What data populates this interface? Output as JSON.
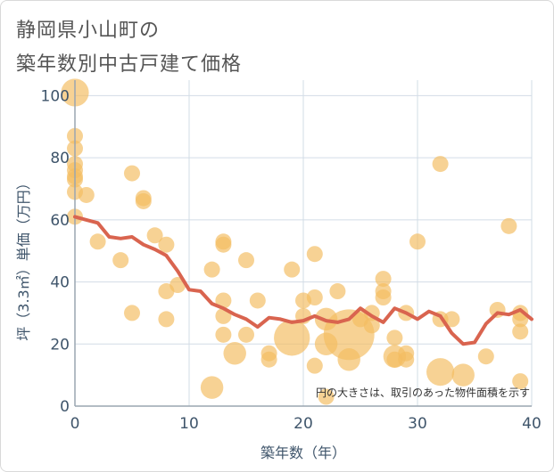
{
  "title": {
    "line1": "静岡県小山町の",
    "line2": "築年数別中古戸建て価格"
  },
  "chart_data": {
    "type": "scatter",
    "title": "静岡県小山町の 築年数別中古戸建て価格",
    "xlabel": "築年数（年）",
    "ylabel": "坪（3.3㎡）単価（万円）",
    "xlim": [
      0,
      40
    ],
    "ylim": [
      0,
      105
    ],
    "xticks": [
      "0",
      "10",
      "20",
      "30",
      "40"
    ],
    "yticks": [
      "0",
      "20",
      "40",
      "60",
      "80",
      "100"
    ],
    "grid": true,
    "annotation": "円の大きさは、取引のあった物件面積を示す",
    "colors": {
      "bubble": "#f3bc62",
      "line": "#d9644f",
      "grid": "#d2dce6",
      "axis": "#9aa5b1"
    },
    "scatter": [
      {
        "x": 0,
        "y": 101,
        "s": 3
      },
      {
        "x": 0,
        "y": 87,
        "s": 1
      },
      {
        "x": 0,
        "y": 83,
        "s": 1
      },
      {
        "x": 0,
        "y": 78,
        "s": 1
      },
      {
        "x": 0,
        "y": 76,
        "s": 1
      },
      {
        "x": 0,
        "y": 74,
        "s": 1
      },
      {
        "x": 0,
        "y": 73,
        "s": 1
      },
      {
        "x": 0,
        "y": 69,
        "s": 1
      },
      {
        "x": 0,
        "y": 61,
        "s": 1
      },
      {
        "x": 1,
        "y": 68,
        "s": 1
      },
      {
        "x": 2,
        "y": 53,
        "s": 1
      },
      {
        "x": 4,
        "y": 47,
        "s": 1
      },
      {
        "x": 5,
        "y": 75,
        "s": 1
      },
      {
        "x": 5,
        "y": 30,
        "s": 1
      },
      {
        "x": 6,
        "y": 67,
        "s": 1
      },
      {
        "x": 6,
        "y": 66,
        "s": 1
      },
      {
        "x": 7,
        "y": 55,
        "s": 1
      },
      {
        "x": 8,
        "y": 52,
        "s": 1
      },
      {
        "x": 8,
        "y": 37,
        "s": 1
      },
      {
        "x": 8,
        "y": 28,
        "s": 1
      },
      {
        "x": 9,
        "y": 39,
        "s": 1
      },
      {
        "x": 12,
        "y": 44,
        "s": 1
      },
      {
        "x": 12,
        "y": 6,
        "s": 2
      },
      {
        "x": 13,
        "y": 53,
        "s": 1
      },
      {
        "x": 13,
        "y": 52,
        "s": 1
      },
      {
        "x": 13,
        "y": 34,
        "s": 1
      },
      {
        "x": 13,
        "y": 29,
        "s": 1
      },
      {
        "x": 13,
        "y": 23,
        "s": 1
      },
      {
        "x": 14,
        "y": 17,
        "s": 2
      },
      {
        "x": 15,
        "y": 47,
        "s": 1
      },
      {
        "x": 15,
        "y": 23,
        "s": 1
      },
      {
        "x": 16,
        "y": 34,
        "s": 1
      },
      {
        "x": 17,
        "y": 17,
        "s": 1
      },
      {
        "x": 17,
        "y": 15,
        "s": 1
      },
      {
        "x": 19,
        "y": 44,
        "s": 1
      },
      {
        "x": 19,
        "y": 22,
        "s": 5
      },
      {
        "x": 20,
        "y": 34,
        "s": 1
      },
      {
        "x": 20,
        "y": 29,
        "s": 1
      },
      {
        "x": 21,
        "y": 49,
        "s": 1
      },
      {
        "x": 21,
        "y": 35,
        "s": 1
      },
      {
        "x": 21,
        "y": 13,
        "s": 1
      },
      {
        "x": 22,
        "y": 28,
        "s": 2
      },
      {
        "x": 22,
        "y": 20,
        "s": 2
      },
      {
        "x": 22,
        "y": 3,
        "s": 1
      },
      {
        "x": 23,
        "y": 37,
        "s": 1
      },
      {
        "x": 24,
        "y": 23,
        "s": 10
      },
      {
        "x": 24,
        "y": 15,
        "s": 2
      },
      {
        "x": 25,
        "y": 28,
        "s": 1
      },
      {
        "x": 26,
        "y": 30,
        "s": 1
      },
      {
        "x": 26,
        "y": 26,
        "s": 1
      },
      {
        "x": 27,
        "y": 41,
        "s": 1
      },
      {
        "x": 27,
        "y": 37,
        "s": 1
      },
      {
        "x": 27,
        "y": 35,
        "s": 1
      },
      {
        "x": 28,
        "y": 22,
        "s": 1
      },
      {
        "x": 28,
        "y": 16,
        "s": 2
      },
      {
        "x": 28,
        "y": 15,
        "s": 1
      },
      {
        "x": 29,
        "y": 30,
        "s": 1
      },
      {
        "x": 29,
        "y": 17,
        "s": 1
      },
      {
        "x": 29,
        "y": 15,
        "s": 1
      },
      {
        "x": 30,
        "y": 53,
        "s": 1
      },
      {
        "x": 32,
        "y": 78,
        "s": 1
      },
      {
        "x": 32,
        "y": 28,
        "s": 1
      },
      {
        "x": 32,
        "y": 11,
        "s": 3
      },
      {
        "x": 33,
        "y": 28,
        "s": 1
      },
      {
        "x": 34,
        "y": 10,
        "s": 2
      },
      {
        "x": 36,
        "y": 16,
        "s": 1
      },
      {
        "x": 37,
        "y": 31,
        "s": 1
      },
      {
        "x": 38,
        "y": 58,
        "s": 1
      },
      {
        "x": 39,
        "y": 30,
        "s": 1
      },
      {
        "x": 39,
        "y": 28,
        "s": 1
      },
      {
        "x": 39,
        "y": 24,
        "s": 1
      },
      {
        "x": 39,
        "y": 8,
        "s": 1
      }
    ],
    "trend": [
      {
        "x": 0,
        "y": 61
      },
      {
        "x": 1,
        "y": 60
      },
      {
        "x": 2,
        "y": 59
      },
      {
        "x": 3,
        "y": 54.5
      },
      {
        "x": 4,
        "y": 54
      },
      {
        "x": 5,
        "y": 54.5
      },
      {
        "x": 6,
        "y": 52
      },
      {
        "x": 7,
        "y": 50.5
      },
      {
        "x": 8,
        "y": 48.5
      },
      {
        "x": 9,
        "y": 43.5
      },
      {
        "x": 10,
        "y": 37.5
      },
      {
        "x": 11,
        "y": 37
      },
      {
        "x": 12,
        "y": 33
      },
      {
        "x": 13,
        "y": 31.5
      },
      {
        "x": 14,
        "y": 29.5
      },
      {
        "x": 15,
        "y": 28
      },
      {
        "x": 16,
        "y": 25.5
      },
      {
        "x": 17,
        "y": 28.5
      },
      {
        "x": 18,
        "y": 28
      },
      {
        "x": 19,
        "y": 27
      },
      {
        "x": 20,
        "y": 27.5
      },
      {
        "x": 21,
        "y": 29
      },
      {
        "x": 22,
        "y": 27.5
      },
      {
        "x": 23,
        "y": 27
      },
      {
        "x": 24,
        "y": 28
      },
      {
        "x": 25,
        "y": 31.5
      },
      {
        "x": 26,
        "y": 29
      },
      {
        "x": 27,
        "y": 27
      },
      {
        "x": 28,
        "y": 31.5
      },
      {
        "x": 29,
        "y": 30
      },
      {
        "x": 30,
        "y": 28
      },
      {
        "x": 31,
        "y": 30.5
      },
      {
        "x": 32,
        "y": 29
      },
      {
        "x": 33,
        "y": 23.5
      },
      {
        "x": 34,
        "y": 20
      },
      {
        "x": 35,
        "y": 20.5
      },
      {
        "x": 36,
        "y": 26.5
      },
      {
        "x": 37,
        "y": 30
      },
      {
        "x": 38,
        "y": 29.5
      },
      {
        "x": 39,
        "y": 31
      },
      {
        "x": 40,
        "y": 28
      }
    ]
  }
}
